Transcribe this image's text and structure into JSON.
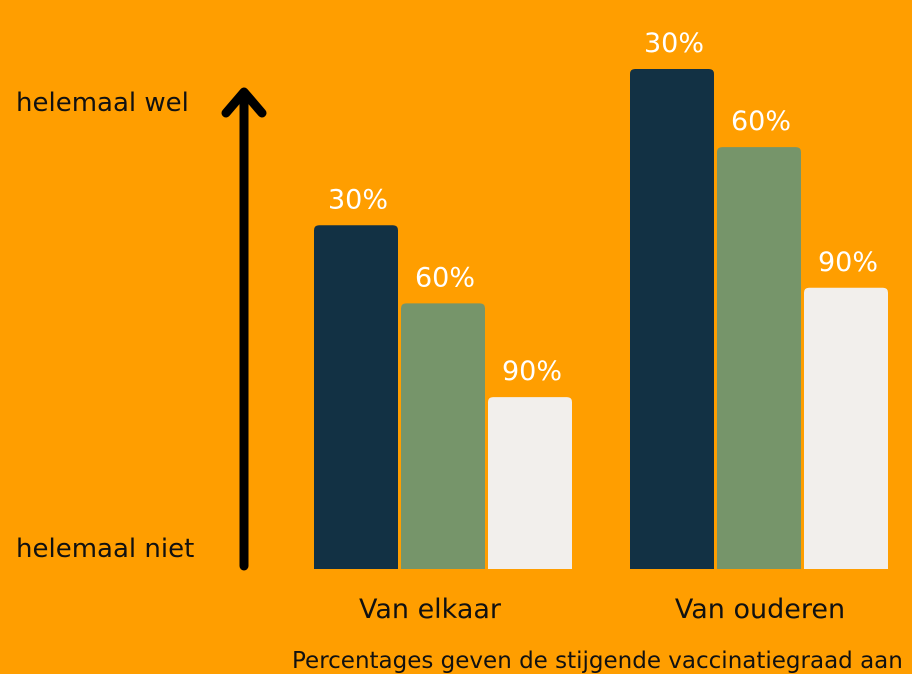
{
  "chart_data": {
    "type": "bar",
    "categories": [
      "Van elkaar",
      "Van ouderen"
    ],
    "series": [
      {
        "name": "30%",
        "values": [
          88,
          128
        ],
        "color": "#123144"
      },
      {
        "name": "60%",
        "values": [
          68,
          108
        ],
        "color": "#76956A"
      },
      {
        "name": "90%",
        "values": [
          44,
          72
        ],
        "color": "#F2EFEC"
      }
    ],
    "data_labels": [
      [
        "30%",
        "30%"
      ],
      [
        "60%",
        "60%"
      ],
      [
        "90%",
        "90%"
      ]
    ],
    "ylim": [
      0,
      128
    ],
    "y_axis_top_label": "helemaal wel",
    "y_axis_bottom_label": "helemaal niet",
    "note": "Percentages geven de stijgende vaccinatiegraad aan",
    "grid": false,
    "legend": "none"
  }
}
